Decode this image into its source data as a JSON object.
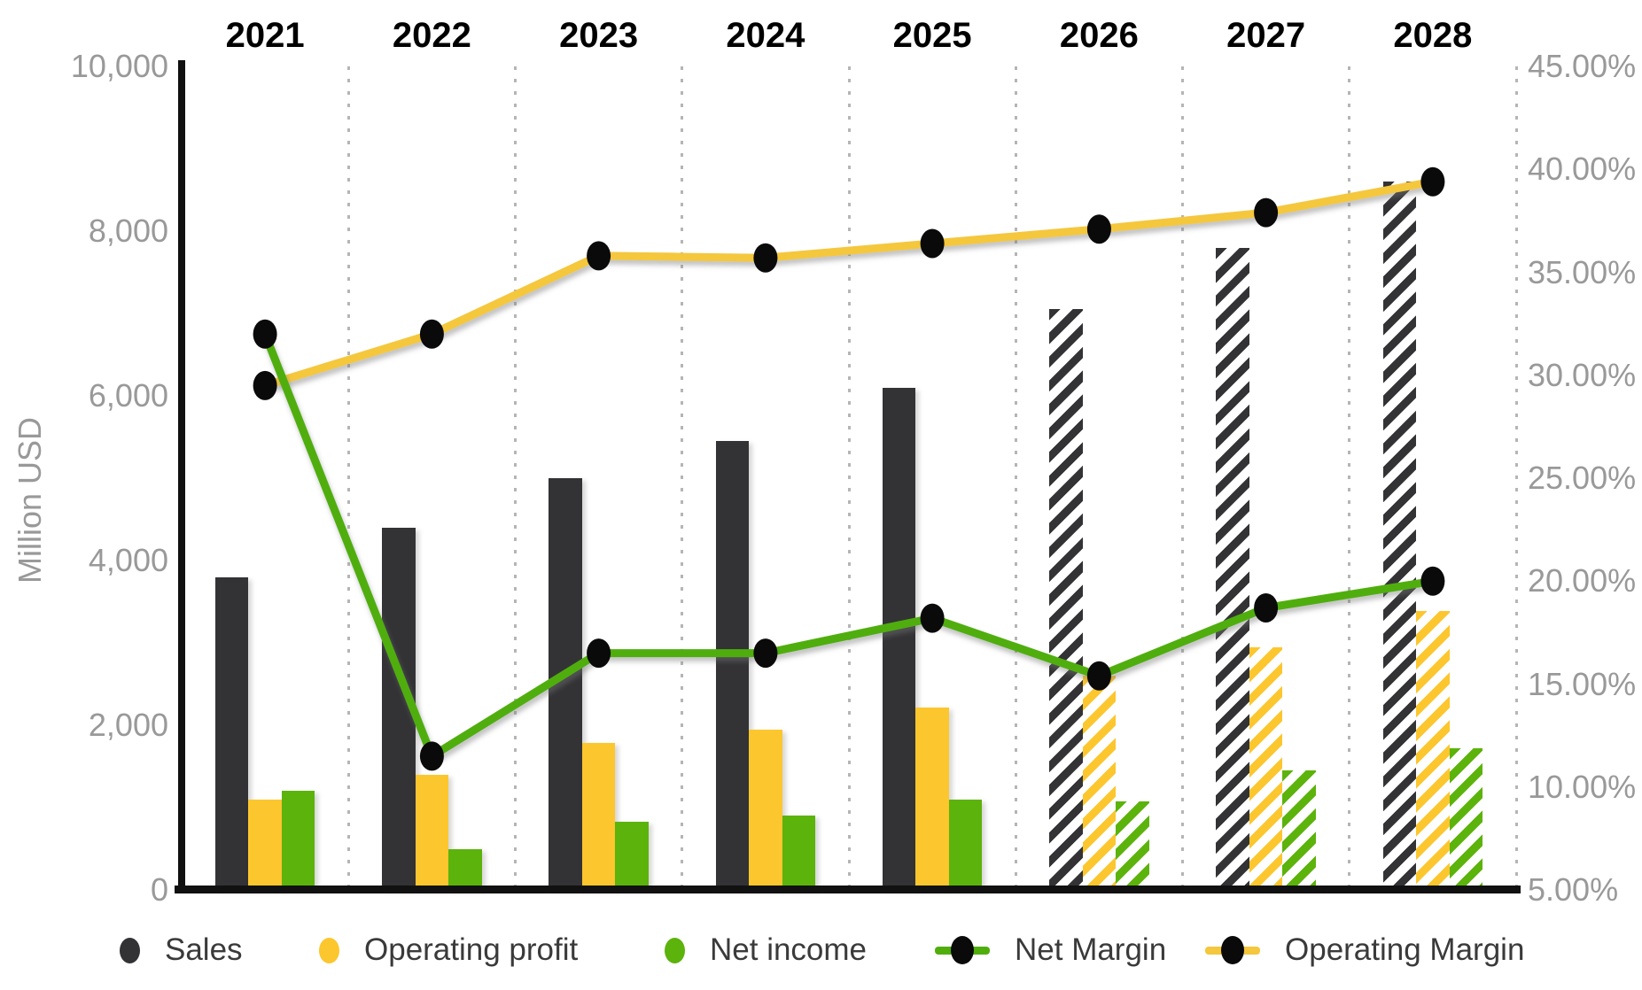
{
  "chart_data": {
    "type": "bar-line-combo",
    "categories": [
      "2021",
      "2022",
      "2023",
      "2024",
      "2025",
      "2026",
      "2027",
      "2028"
    ],
    "forecast_categories": [
      "2026",
      "2027",
      "2028"
    ],
    "bar_series": [
      {
        "name": "Sales",
        "color": "#333336",
        "values": [
          3800,
          4400,
          5000,
          5450,
          6100,
          7050,
          7800,
          8600
        ]
      },
      {
        "name": "Operating profit",
        "color": "#FCC62E",
        "values": [
          1100,
          1400,
          1790,
          1950,
          2220,
          2600,
          2950,
          3390
        ]
      },
      {
        "name": "Net income",
        "color": "#5CB30B",
        "values": [
          1200,
          500,
          825,
          900,
          1100,
          1080,
          1450,
          1720
        ]
      }
    ],
    "line_series": [
      {
        "name": "Operating Margin",
        "color": "#F4C73C",
        "axis": "right",
        "values": [
          29.5,
          32.0,
          35.8,
          35.7,
          36.4,
          37.1,
          37.9,
          39.4
        ]
      },
      {
        "name": "Net Margin",
        "color": "#4FAE0C",
        "axis": "right",
        "values": [
          32.0,
          11.5,
          16.5,
          16.5,
          18.2,
          15.4,
          18.7,
          20.0
        ]
      }
    ],
    "left_axis": {
      "title": "Million USD",
      "range": [
        0,
        10000
      ],
      "tick_values": [
        10000,
        8000,
        6000,
        4000,
        2000,
        0
      ],
      "tick_labels": [
        "10,000",
        "8,000",
        "6,000",
        "4,000",
        "2,000",
        "0"
      ]
    },
    "right_axis": {
      "range": [
        5,
        45
      ],
      "tick_values": [
        45,
        40,
        35,
        30,
        25,
        20,
        15,
        10,
        5
      ],
      "tick_labels": [
        "45.00%",
        "40.00%",
        "35.00%",
        "30.00%",
        "25.00%",
        "20.00%",
        "15.00%",
        "10.00%",
        "5.00%"
      ]
    },
    "legend": [
      {
        "label": "Sales",
        "swatch": "dot",
        "color": "#333336"
      },
      {
        "label": "Operating profit",
        "swatch": "dot",
        "color": "#FCC62E"
      },
      {
        "label": "Net income",
        "swatch": "dot",
        "color": "#5CB30B"
      },
      {
        "label": "Net Margin",
        "swatch": "line-dot",
        "color": "#4FAE0C"
      },
      {
        "label": "Operating Margin",
        "swatch": "line-dot",
        "color": "#F4C73C"
      }
    ],
    "marker_color": "#0a0a0a",
    "gridline_color": "#b5b5b5",
    "grid": "vertical-dotted",
    "legend_position": "bottom"
  }
}
